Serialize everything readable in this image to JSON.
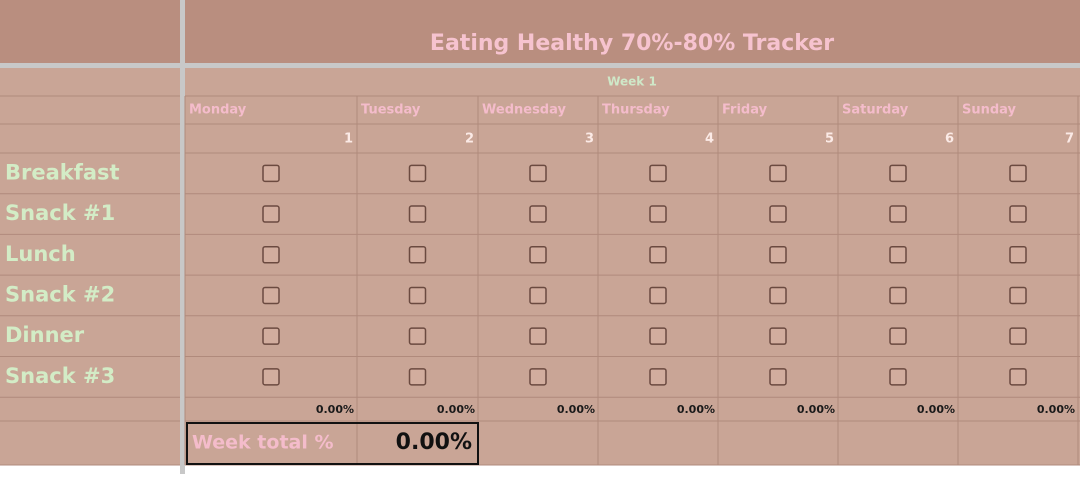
{
  "header": {
    "title": "Eating Healthy 70%-80% Tracker",
    "week": "Week 1"
  },
  "days": [
    "Monday",
    "Tuesday",
    "Wednesday",
    "Thursday",
    "Friday",
    "Saturday",
    "Sunday"
  ],
  "day_numbers": [
    1,
    2,
    3,
    4,
    5,
    6,
    7
  ],
  "meals": [
    "Breakfast",
    "Snack #1",
    "Lunch",
    "Snack #2",
    "Dinner",
    "Snack #3"
  ],
  "daily_percentages": [
    "0.00%",
    "0.00%",
    "0.00%",
    "0.00%",
    "0.00%",
    "0.00%",
    "0.00%"
  ],
  "week_total": {
    "label": "Week total %",
    "value": "0.00%"
  }
}
